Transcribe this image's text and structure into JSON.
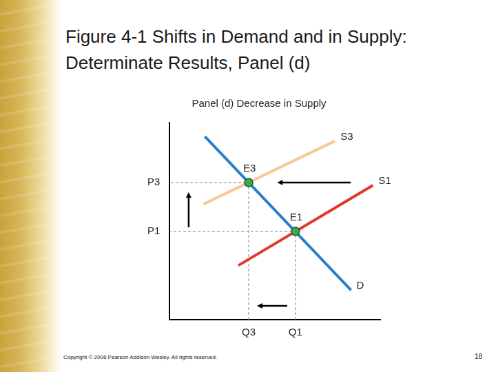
{
  "header": {
    "title": "Figure 4-1 Shifts in Demand and in Supply: Determinate Results, Panel (d)"
  },
  "footer": {
    "copyright": "Copyright © 2006 Pearson Addison Wesley. All rights reserved.",
    "page": "18"
  },
  "chart_data": {
    "type": "line",
    "title": "Panel (d) Decrease in Supply",
    "xlim": [
      0,
      10
    ],
    "ylim": [
      0,
      10
    ],
    "xticks": [
      {
        "value": 3.75,
        "label": "Q3"
      },
      {
        "value": 5.97,
        "label": "Q1"
      }
    ],
    "yticks": [
      {
        "value": 4.48,
        "label": "P1"
      },
      {
        "value": 6.96,
        "label": "P3"
      }
    ],
    "grid": false,
    "series": [
      {
        "name": "D",
        "type": "line",
        "color": "#2b7fc8",
        "x": [
          1.67,
          8.61
        ],
        "values": [
          9.3,
          1.5
        ]
      },
      {
        "name": "S1",
        "type": "line",
        "color": "#e0392b",
        "x": [
          3.26,
          9.65
        ],
        "values": [
          2.75,
          6.82
        ]
      },
      {
        "name": "S3",
        "type": "line",
        "color": "#f6c99b",
        "x": [
          1.6,
          7.85
        ],
        "values": [
          5.86,
          9.07
        ]
      },
      {
        "name": "E3",
        "type": "scatter",
        "marker": "circle",
        "color": "#3aa84c",
        "x": [
          3.75
        ],
        "values": [
          6.96
        ]
      },
      {
        "name": "E1",
        "type": "scatter",
        "marker": "circle",
        "color": "#3aa84c",
        "x": [
          5.97
        ],
        "values": [
          4.48
        ]
      }
    ]
  }
}
